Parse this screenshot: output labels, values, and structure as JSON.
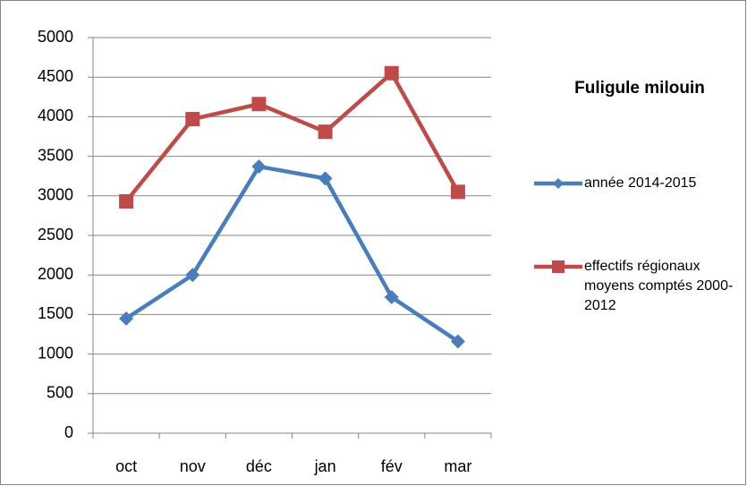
{
  "chart_data": {
    "type": "line",
    "title": "Fuligule milouin",
    "categories": [
      "oct",
      "nov",
      "déc",
      "jan",
      "fév",
      "mar"
    ],
    "series": [
      {
        "name": "année 2014-2015",
        "color": "#4a7ebb",
        "marker": "diamond",
        "values": [
          1450,
          2000,
          3370,
          3220,
          1720,
          1160
        ]
      },
      {
        "name": "effectifs régionaux moyens comptés 2000-2012",
        "color": "#be4b48",
        "marker": "square",
        "values": [
          2930,
          3970,
          4160,
          3810,
          4550,
          3050
        ]
      }
    ],
    "ylim": [
      0,
      5000
    ],
    "yticks": [
      0,
      500,
      1000,
      1500,
      2000,
      2500,
      3000,
      3500,
      4000,
      4500,
      5000
    ],
    "grid": true,
    "legend": "right"
  }
}
